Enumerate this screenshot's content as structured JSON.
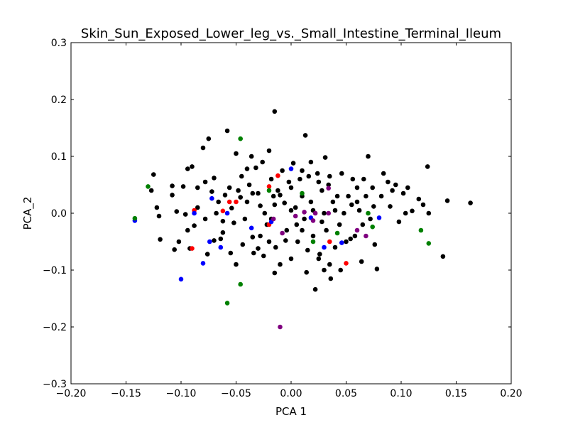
{
  "chart_data": {
    "type": "scatter",
    "title": "Skin_Sun_Exposed_Lower_leg_vs._Small_Intestine_Terminal_Ileum",
    "xlabel": "PCA 1",
    "ylabel": "PCA_2",
    "xlim": [
      -0.2,
      0.2
    ],
    "ylim": [
      -0.3,
      0.3
    ],
    "grid": false,
    "legend": "none",
    "x_ticks": [
      -0.2,
      -0.15,
      -0.1,
      -0.05,
      0.0,
      0.05,
      0.1,
      0.15,
      0.2
    ],
    "x_tick_labels": [
      "−0.20",
      "−0.15",
      "−0.10",
      "−0.05",
      "0.00",
      "0.05",
      "0.10",
      "0.15",
      "0.20"
    ],
    "y_ticks": [
      -0.3,
      -0.2,
      -0.1,
      0.0,
      0.1,
      0.2,
      0.3
    ],
    "y_tick_labels": [
      "−0.3",
      "−0.2",
      "−0.1",
      "0.0",
      "0.1",
      "0.2",
      "0.3"
    ],
    "series": [
      {
        "name": "black",
        "color": "#000000",
        "points": [
          [
            -0.125,
            0.068
          ],
          [
            -0.127,
            0.04
          ],
          [
            -0.122,
            0.01
          ],
          [
            -0.12,
            -0.005
          ],
          [
            -0.119,
            -0.046
          ],
          [
            -0.108,
            0.048
          ],
          [
            -0.108,
            0.032
          ],
          [
            -0.106,
            -0.064
          ],
          [
            -0.104,
            0.003
          ],
          [
            -0.102,
            -0.05
          ],
          [
            -0.098,
            0.047
          ],
          [
            -0.096,
            -0.002
          ],
          [
            -0.094,
            0.078
          ],
          [
            -0.09,
            0.082
          ],
          [
            -0.094,
            -0.03
          ],
          [
            -0.092,
            -0.062
          ],
          [
            -0.088,
            -0.022
          ],
          [
            -0.085,
            0.045
          ],
          [
            -0.08,
            0.115
          ],
          [
            -0.078,
            0.055
          ],
          [
            -0.075,
            0.131
          ],
          [
            -0.07,
            0.062
          ],
          [
            -0.072,
            0.038
          ],
          [
            -0.068,
            0.0
          ],
          [
            -0.066,
            0.02
          ],
          [
            -0.064,
            -0.045
          ],
          [
            -0.062,
            -0.014
          ],
          [
            -0.06,
            0.032
          ],
          [
            -0.058,
            0.145
          ],
          [
            -0.056,
            0.045
          ],
          [
            -0.054,
            0.009
          ],
          [
            -0.052,
            -0.017
          ],
          [
            -0.05,
            0.105
          ],
          [
            -0.048,
            0.04
          ],
          [
            -0.046,
            0.028
          ],
          [
            -0.044,
            -0.055
          ],
          [
            -0.042,
            -0.01
          ],
          [
            -0.04,
            0.02
          ],
          [
            -0.038,
            0.05
          ],
          [
            -0.036,
            0.1
          ],
          [
            -0.034,
            -0.07
          ],
          [
            -0.032,
            0.08
          ],
          [
            -0.03,
            0.035
          ],
          [
            -0.028,
            -0.04
          ],
          [
            -0.026,
            0.09
          ],
          [
            -0.024,
            0.0
          ],
          [
            -0.022,
            -0.02
          ],
          [
            -0.02,
            0.11
          ],
          [
            -0.018,
            0.06
          ],
          [
            -0.016,
            0.03
          ],
          [
            -0.015,
            0.179
          ],
          [
            -0.014,
            -0.06
          ],
          [
            -0.012,
            0.04
          ],
          [
            -0.01,
            -0.09
          ],
          [
            -0.008,
            0.075
          ],
          [
            -0.006,
            0.018
          ],
          [
            -0.004,
            -0.03
          ],
          [
            -0.002,
            0.055
          ],
          [
            0.0,
            -0.08
          ],
          [
            0.002,
            0.088
          ],
          [
            0.004,
            0.01
          ],
          [
            0.006,
            -0.05
          ],
          [
            0.008,
            0.06
          ],
          [
            0.01,
            0.03
          ],
          [
            0.012,
            -0.01
          ],
          [
            0.013,
            0.137
          ],
          [
            0.014,
            -0.104
          ],
          [
            0.016,
            0.065
          ],
          [
            0.018,
            0.02
          ],
          [
            0.02,
            -0.04
          ],
          [
            0.022,
            -0.134
          ],
          [
            0.024,
            0.07
          ],
          [
            0.026,
            -0.072
          ],
          [
            0.028,
            0.04
          ],
          [
            0.03,
            0.0
          ],
          [
            0.031,
            0.098
          ],
          [
            0.032,
            -0.03
          ],
          [
            0.034,
            0.05
          ],
          [
            0.036,
            -0.115
          ],
          [
            0.038,
            0.02
          ],
          [
            0.04,
            -0.06
          ],
          [
            0.042,
            0.03
          ],
          [
            0.044,
            -0.02
          ],
          [
            0.046,
            0.07
          ],
          [
            0.048,
            0.0
          ],
          [
            0.05,
            -0.05
          ],
          [
            0.052,
            0.03
          ],
          [
            0.054,
            -0.045
          ],
          [
            0.056,
            0.06
          ],
          [
            0.058,
            -0.04
          ],
          [
            0.06,
            0.02
          ],
          [
            0.062,
            0.005
          ],
          [
            0.064,
            -0.085
          ],
          [
            0.066,
            0.06
          ],
          [
            0.068,
            0.03
          ],
          [
            0.07,
            0.1
          ],
          [
            0.072,
            -0.01
          ],
          [
            0.074,
            0.045
          ],
          [
            0.076,
            -0.055
          ],
          [
            0.078,
            -0.098
          ],
          [
            0.082,
            0.03
          ],
          [
            0.084,
            0.07
          ],
          [
            0.088,
            0.055
          ],
          [
            0.09,
            0.012
          ],
          [
            0.092,
            0.04
          ],
          [
            0.095,
            0.05
          ],
          [
            0.098,
            -0.015
          ],
          [
            0.102,
            0.035
          ],
          [
            0.104,
            0.0
          ],
          [
            0.106,
            0.045
          ],
          [
            0.11,
            0.004
          ],
          [
            0.116,
            0.025
          ],
          [
            0.12,
            0.015
          ],
          [
            0.124,
            0.082
          ],
          [
            0.125,
            0.0
          ],
          [
            0.138,
            -0.076
          ],
          [
            0.142,
            0.022
          ],
          [
            0.163,
            0.018
          ],
          [
            -0.07,
            -0.048
          ],
          [
            -0.076,
            -0.072
          ],
          [
            -0.062,
            -0.034
          ],
          [
            -0.035,
            -0.042
          ],
          [
            -0.03,
            -0.062
          ],
          [
            -0.025,
            -0.075
          ],
          [
            -0.02,
            -0.05
          ],
          [
            -0.018,
            -0.01
          ],
          [
            -0.005,
            -0.048
          ],
          [
            0.005,
            -0.02
          ],
          [
            0.015,
            -0.065
          ],
          [
            0.025,
            -0.08
          ],
          [
            0.03,
            -0.1
          ],
          [
            0.035,
            -0.09
          ],
          [
            0.045,
            -0.1
          ],
          [
            -0.045,
            0.065
          ],
          [
            -0.04,
            0.078
          ],
          [
            -0.035,
            0.035
          ],
          [
            -0.028,
            0.013
          ],
          [
            -0.015,
            0.015
          ],
          [
            0.0,
            0.045
          ],
          [
            0.01,
            0.075
          ],
          [
            0.018,
            0.09
          ],
          [
            0.025,
            0.055
          ],
          [
            0.035,
            0.065
          ],
          [
            0.04,
            0.005
          ],
          [
            0.055,
            0.015
          ],
          [
            0.06,
            0.045
          ],
          [
            0.065,
            -0.02
          ],
          [
            0.075,
            0.012
          ],
          [
            -0.085,
            0.01
          ],
          [
            -0.078,
            -0.01
          ],
          [
            -0.055,
            -0.07
          ],
          [
            -0.05,
            -0.09
          ],
          [
            -0.015,
            -0.105
          ],
          [
            -0.01,
            0.032
          ],
          [
            0.0,
            0.005
          ],
          [
            0.01,
            -0.03
          ],
          [
            0.02,
            0.005
          ],
          [
            0.028,
            -0.015
          ]
        ]
      },
      {
        "name": "red",
        "color": "#ff0000",
        "points": [
          [
            -0.09,
            -0.062
          ],
          [
            -0.088,
            0.005
          ],
          [
            -0.062,
            0.004
          ],
          [
            -0.056,
            0.02
          ],
          [
            -0.05,
            0.02
          ],
          [
            -0.02,
            0.047
          ],
          [
            -0.012,
            0.066
          ],
          [
            -0.02,
            -0.02
          ],
          [
            0.035,
            -0.05
          ],
          [
            0.05,
            -0.088
          ]
        ]
      },
      {
        "name": "blue",
        "color": "#0000ff",
        "points": [
          [
            -0.142,
            -0.013
          ],
          [
            -0.1,
            -0.116
          ],
          [
            -0.088,
            0.0
          ],
          [
            -0.08,
            -0.088
          ],
          [
            -0.074,
            -0.05
          ],
          [
            -0.072,
            0.026
          ],
          [
            -0.064,
            -0.06
          ],
          [
            -0.058,
            0.0
          ],
          [
            -0.036,
            -0.026
          ],
          [
            -0.018,
            -0.015
          ],
          [
            0.0,
            0.078
          ],
          [
            0.018,
            -0.008
          ],
          [
            0.03,
            -0.06
          ],
          [
            0.046,
            -0.052
          ],
          [
            0.08,
            -0.008
          ]
        ]
      },
      {
        "name": "green",
        "color": "#008000",
        "points": [
          [
            -0.13,
            0.047
          ],
          [
            -0.142,
            -0.009
          ],
          [
            -0.058,
            -0.158
          ],
          [
            -0.046,
            0.131
          ],
          [
            -0.046,
            -0.125
          ],
          [
            -0.02,
            0.04
          ],
          [
            0.01,
            0.035
          ],
          [
            0.02,
            -0.05
          ],
          [
            0.042,
            -0.035
          ],
          [
            0.07,
            0.0
          ],
          [
            0.074,
            -0.024
          ],
          [
            0.118,
            -0.03
          ],
          [
            0.125,
            -0.053
          ]
        ]
      },
      {
        "name": "purple",
        "color": "#800080",
        "points": [
          [
            -0.01,
            -0.2
          ],
          [
            -0.016,
            -0.01
          ],
          [
            -0.008,
            -0.035
          ],
          [
            0.004,
            -0.005
          ],
          [
            0.012,
            0.002
          ],
          [
            0.02,
            -0.013
          ],
          [
            0.022,
            0.0
          ],
          [
            0.034,
            0.0
          ],
          [
            0.034,
            0.044
          ],
          [
            0.06,
            -0.03
          ],
          [
            0.068,
            -0.04
          ]
        ]
      }
    ]
  }
}
